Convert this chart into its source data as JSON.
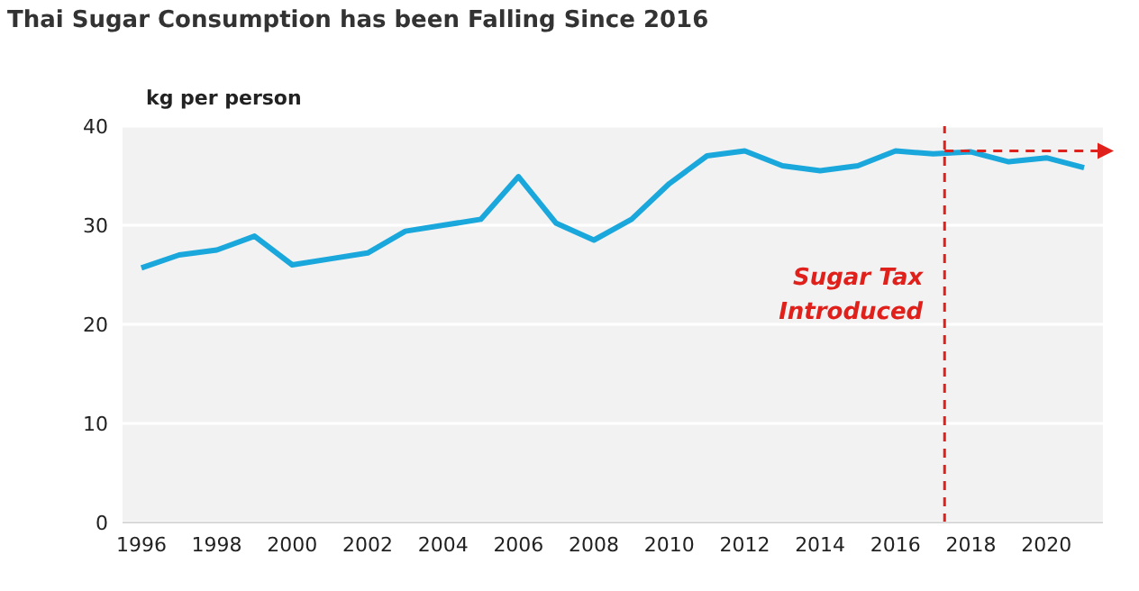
{
  "chart_data": {
    "type": "line",
    "title": "Thai Sugar Consumption has been Falling Since 2016",
    "ylabel": "kg per person",
    "x": [
      1996,
      1997,
      1998,
      1999,
      2000,
      2001,
      2002,
      2003,
      2004,
      2005,
      2006,
      2007,
      2008,
      2009,
      2010,
      2011,
      2012,
      2013,
      2014,
      2015,
      2016,
      2017,
      2018,
      2019,
      2020,
      2021
    ],
    "series": [
      {
        "color": "#1aa7dc",
        "values": [
          25.7,
          27.0,
          27.5,
          28.9,
          26.0,
          26.6,
          27.2,
          29.4,
          30.0,
          30.6,
          34.9,
          30.2,
          28.5,
          30.6,
          34.2,
          37.0,
          37.5,
          36.0,
          35.5,
          36.0,
          37.5,
          37.2,
          37.4,
          36.4,
          36.8,
          35.8
        ]
      }
    ],
    "xlim": [
      1995.5,
      2021.5
    ],
    "xticks": [
      1996,
      1998,
      2000,
      2002,
      2004,
      2006,
      2008,
      2010,
      2012,
      2014,
      2016,
      2018,
      2020
    ],
    "ylim": [
      0,
      40
    ],
    "yticks": [
      0,
      10,
      20,
      30,
      40
    ],
    "ref_lines": [
      {
        "axis": "x",
        "value": 2017.3,
        "label": "Sugar Tax Introduced",
        "color": "#e0201b",
        "line_style": "dashed"
      },
      {
        "axis": "y",
        "value": 37.5,
        "color": "#e0201b",
        "line_style": "dashed"
      }
    ],
    "grid": "y",
    "marker": "none",
    "line_style": "solid"
  }
}
